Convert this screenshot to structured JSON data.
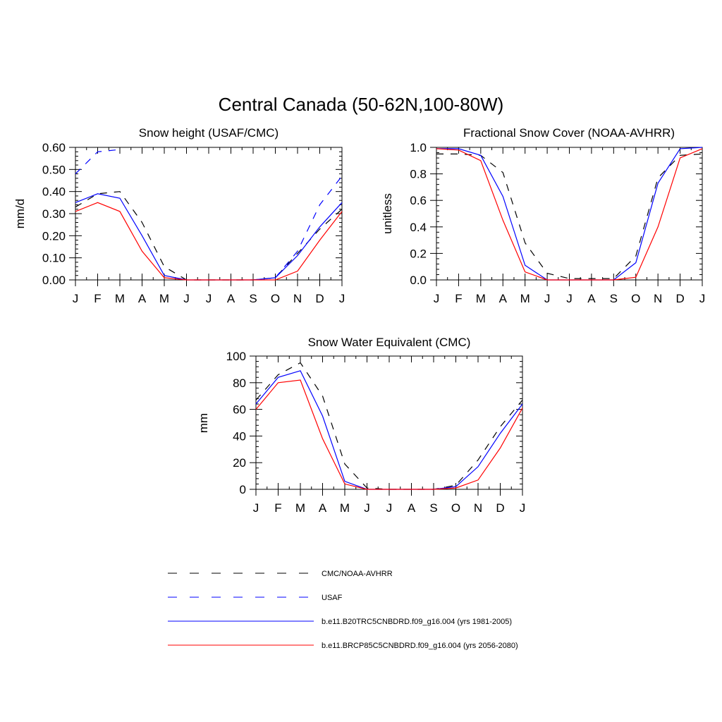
{
  "figure": {
    "title": "Central Canada (50-62N,100-80W)"
  },
  "chart_data": [
    {
      "type": "line",
      "title": "Snow height (USAF/CMC)",
      "xlabel": "",
      "ylabel": "mm/d",
      "categories": [
        "J",
        "F",
        "M",
        "A",
        "M",
        "J",
        "J",
        "A",
        "S",
        "O",
        "N",
        "D",
        "J"
      ],
      "ylim": [
        0,
        0.6
      ],
      "yticks": [
        "0.00",
        "0.10",
        "0.20",
        "0.30",
        "0.40",
        "0.50",
        "0.60"
      ],
      "grid": false,
      "series": [
        {
          "key": "cmc",
          "values": [
            0.33,
            0.39,
            0.4,
            0.26,
            0.06,
            0.0,
            0.0,
            0.0,
            0.0,
            0.01,
            0.12,
            0.23,
            0.32
          ]
        },
        {
          "key": "usaf",
          "values": [
            0.48,
            0.58,
            0.59,
            null,
            null,
            null,
            null,
            null,
            null,
            0.01,
            0.13,
            0.34,
            0.47
          ]
        },
        {
          "key": "hist",
          "values": [
            0.35,
            0.39,
            0.37,
            0.2,
            0.02,
            0.0,
            0.0,
            0.0,
            0.0,
            0.01,
            0.11,
            0.24,
            0.35
          ]
        },
        {
          "key": "future",
          "values": [
            0.31,
            0.35,
            0.31,
            0.13,
            0.01,
            0.0,
            0.0,
            0.0,
            0.0,
            0.0,
            0.04,
            0.18,
            0.31
          ]
        }
      ]
    },
    {
      "type": "line",
      "title": "Fractional Snow Cover (NOAA-AVHRR)",
      "xlabel": "",
      "ylabel": "unitless",
      "categories": [
        "J",
        "F",
        "M",
        "A",
        "M",
        "J",
        "J",
        "A",
        "S",
        "O",
        "N",
        "D",
        "J"
      ],
      "ylim": [
        0,
        1.0
      ],
      "yticks": [
        "0.0",
        "0.2",
        "0.4",
        "0.6",
        "0.8",
        "1.0"
      ],
      "grid": false,
      "series": [
        {
          "key": "cmc",
          "values": [
            0.95,
            0.95,
            0.94,
            0.81,
            0.28,
            0.05,
            0.01,
            0.01,
            0.01,
            0.18,
            0.77,
            0.94,
            0.95
          ]
        },
        {
          "key": "hist",
          "values": [
            0.99,
            0.99,
            0.94,
            0.63,
            0.11,
            0.0,
            0.0,
            0.0,
            0.0,
            0.13,
            0.73,
            0.99,
            1.0
          ]
        },
        {
          "key": "future",
          "values": [
            0.99,
            0.98,
            0.9,
            0.45,
            0.06,
            0.0,
            0.0,
            0.0,
            0.0,
            0.02,
            0.4,
            0.92,
            0.99
          ]
        }
      ]
    },
    {
      "type": "line",
      "title": "Snow Water Equivalent (CMC)",
      "xlabel": "",
      "ylabel": "mm",
      "categories": [
        "J",
        "F",
        "M",
        "A",
        "M",
        "J",
        "J",
        "A",
        "S",
        "O",
        "N",
        "D",
        "J"
      ],
      "ylim": [
        0,
        100
      ],
      "yticks": [
        "0",
        "20",
        "40",
        "60",
        "80",
        "100"
      ],
      "grid": false,
      "series": [
        {
          "key": "cmc",
          "values": [
            67,
            86,
            95,
            70,
            19,
            1,
            0,
            0,
            0,
            3,
            22,
            47,
            67
          ]
        },
        {
          "key": "hist",
          "values": [
            64,
            84,
            89,
            55,
            6,
            0,
            0,
            0,
            0,
            2,
            17,
            42,
            64
          ]
        },
        {
          "key": "future",
          "values": [
            60,
            80,
            82,
            38,
            4,
            0,
            0,
            0,
            0,
            1,
            7,
            31,
            61
          ]
        }
      ]
    }
  ],
  "legend": {
    "placement": "bottom",
    "items": [
      {
        "key": "cmc",
        "label": "CMC/NOAA-AVHRR",
        "color": "#000000",
        "dash": "dashed"
      },
      {
        "key": "usaf",
        "label": "USAF",
        "color": "#0000ff",
        "dash": "dashed"
      },
      {
        "key": "hist",
        "label": "b.e11.B20TRC5CNBDRD.f09_g16.004 (yrs 1981-2005)",
        "color": "#0000ff",
        "dash": "solid"
      },
      {
        "key": "future",
        "label": "b.e11.BRCP85C5CNBDRD.f09_g16.004 (yrs 2056-2080)",
        "color": "#ff0000",
        "dash": "solid"
      }
    ]
  }
}
